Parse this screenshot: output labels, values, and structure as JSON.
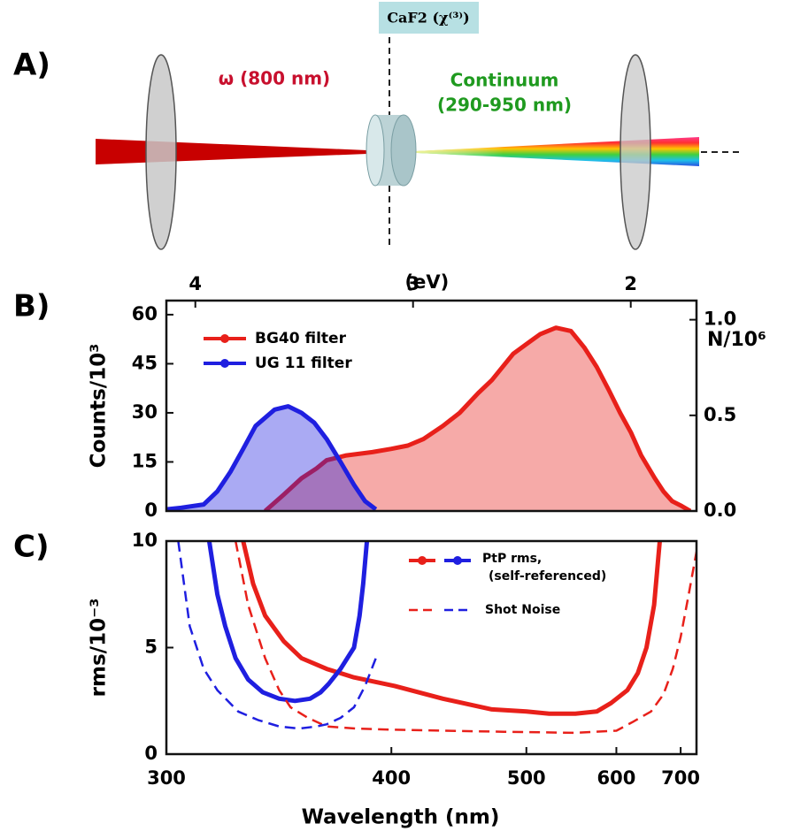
{
  "diagram": {
    "panel_label": "A)",
    "crystal_label": "CaF2 (χ⁽³⁾)",
    "pump_label": "ω (800 nm)",
    "continuum_label": "Continuum",
    "continuum_range": "(290-950 nm)"
  },
  "chart_data": [
    {
      "type": "line",
      "panel_label": "B)",
      "ylabel": "Counts/10³",
      "y2label": "N/10⁶",
      "x2label": "(eV)",
      "xscale": "reciprocal",
      "xlim": [
        300,
        730
      ],
      "x2lim": [
        4.133,
        1.698
      ],
      "x2ticks": [
        4,
        3,
        2
      ],
      "ylim": [
        0,
        64.3
      ],
      "yticks": [
        0,
        15,
        30,
        45,
        60
      ],
      "y2lim": [
        0,
        1.1
      ],
      "y2ticks": [
        {
          "value": 0,
          "label": "0.0"
        },
        0.5,
        {
          "value": 1,
          "label": "1.0"
        }
      ],
      "series": [
        {
          "name": "BG40 filter",
          "color": "#e8201a",
          "fill": true,
          "style": "solid",
          "x": [
            337,
            345,
            353,
            360,
            365,
            375,
            389,
            400,
            410,
            420,
            433,
            445,
            459,
            470,
            488,
            500,
            513,
            529,
            545,
            560,
            575,
            590,
            605,
            620,
            635,
            656,
            670,
            685,
            702,
            718
          ],
          "values": [
            0,
            5,
            10,
            13,
            15.5,
            17,
            18,
            19,
            20,
            22,
            26,
            30,
            36,
            40,
            48,
            51,
            54,
            56,
            55,
            50,
            44,
            37,
            30,
            24,
            17,
            10,
            6,
            3,
            1.5,
            0
          ]
        },
        {
          "name": "UG 11 filter",
          "color": "#1f1fe0",
          "fill": true,
          "style": "solid",
          "x": [
            300,
            305,
            313,
            318,
            323,
            328,
            333,
            341,
            347,
            353,
            359,
            365,
            372,
            379,
            385,
            391
          ],
          "values": [
            0.5,
            1,
            2,
            6,
            12,
            19,
            26,
            31,
            32,
            30,
            27,
            22,
            15,
            8,
            3,
            0.5
          ]
        }
      ]
    },
    {
      "type": "line",
      "panel_label": "C)",
      "ylabel": "rms/10⁻³",
      "xlabel": "Wavelength (nm)",
      "xscale": "reciprocal",
      "xlim": [
        300,
        730
      ],
      "xticks": [
        300,
        400,
        500,
        600,
        700
      ],
      "ylim": [
        0,
        10
      ],
      "yticks": [
        0,
        5,
        10
      ],
      "legend": [
        "PtP rms,",
        "(self-referenced)",
        "Shot Noise"
      ],
      "series": [
        {
          "color": "#e8201a",
          "style": "solid",
          "x": [
            328,
            332,
            337,
            345,
            353,
            365,
            379,
            402,
            433,
            470,
            500,
            522,
            550,
            575,
            593,
            615,
            630,
            643,
            655,
            664
          ],
          "values": [
            10,
            8,
            6.5,
            5.3,
            4.5,
            4,
            3.6,
            3.2,
            2.6,
            2.1,
            2,
            1.9,
            1.9,
            2,
            2.4,
            3,
            3.8,
            5,
            7,
            10
          ]
        },
        {
          "color": "#1f1fe0",
          "style": "solid",
          "x": [
            315,
            318,
            321,
            325,
            330,
            336,
            343,
            350,
            357,
            362,
            366,
            372,
            379,
            382,
            384,
            386
          ],
          "values": [
            10,
            7.5,
            6,
            4.5,
            3.5,
            2.9,
            2.6,
            2.5,
            2.6,
            2.9,
            3.3,
            4,
            5,
            6.5,
            8,
            10
          ]
        },
        {
          "color": "#e8201a",
          "style": "dashed",
          "x": [
            325,
            330,
            337,
            343,
            348,
            356,
            365,
            380,
            400,
            433,
            480,
            550,
            600,
            622,
            650,
            670,
            686,
            700,
            715,
            730
          ],
          "values": [
            10,
            7,
            4.5,
            3,
            2.2,
            1.7,
            1.3,
            1.2,
            1.15,
            1.1,
            1.05,
            1,
            1.1,
            1.5,
            2,
            2.8,
            4,
            5.5,
            7.5,
            9.5
          ]
        },
        {
          "color": "#1f1fe0",
          "style": "dashed",
          "x": [
            304,
            308,
            313,
            318,
            326,
            334,
            343,
            352,
            360,
            365,
            372,
            379,
            385,
            391
          ],
          "values": [
            10,
            6,
            4,
            3,
            2,
            1.6,
            1.3,
            1.2,
            1.3,
            1.4,
            1.7,
            2.2,
            3.2,
            4.5
          ]
        }
      ]
    }
  ]
}
